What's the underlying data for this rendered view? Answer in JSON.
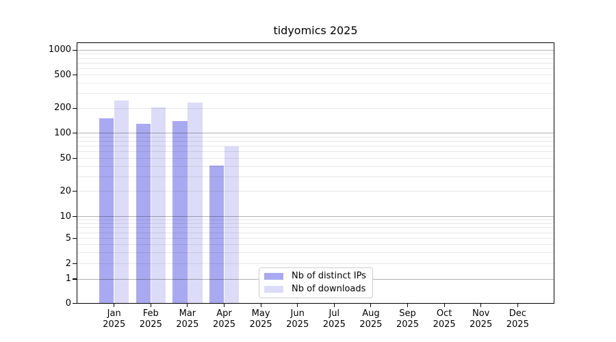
{
  "title": "tidyomics 2025",
  "colors": {
    "ips_bar": "#a9a9f1",
    "downloads_bar": "#dcdcf8",
    "grid_major": "rgba(0,0,0,0.30)",
    "grid_minor": "rgba(0,0,0,0.09)",
    "axis": "#000000",
    "legend_border": "#cccccc",
    "background": "#ffffff"
  },
  "y_axis": {
    "tick_labels": [
      "0",
      "1",
      "2",
      "5",
      "10",
      "20",
      "50",
      "100",
      "200",
      "500",
      "1000"
    ],
    "tick_values": [
      0,
      1,
      2,
      5,
      10,
      20,
      50,
      100,
      200,
      500,
      1000
    ]
  },
  "x_axis": {
    "months": [
      "Jan",
      "Feb",
      "Mar",
      "Apr",
      "May",
      "Jun",
      "Jul",
      "Aug",
      "Sep",
      "Oct",
      "Nov",
      "Dec"
    ],
    "year": "2025"
  },
  "legend": {
    "items": [
      {
        "label": "Nb of distinct IPs",
        "color_key": "ips_bar"
      },
      {
        "label": "Nb of downloads",
        "color_key": "downloads_bar"
      }
    ]
  },
  "chart_data": {
    "type": "bar",
    "title": "tidyomics 2025",
    "categories": [
      "Jan 2025",
      "Feb 2025",
      "Mar 2025",
      "Apr 2025",
      "May 2025",
      "Jun 2025",
      "Jul 2025",
      "Aug 2025",
      "Sep 2025",
      "Oct 2025",
      "Nov 2025",
      "Dec 2025"
    ],
    "series": [
      {
        "name": "Nb of distinct IPs",
        "color": "#a9a9f1",
        "values": [
          152,
          130,
          140,
          41,
          null,
          null,
          null,
          null,
          null,
          null,
          null,
          null
        ]
      },
      {
        "name": "Nb of downloads",
        "color": "#dcdcf8",
        "values": [
          250,
          205,
          236,
          70,
          null,
          null,
          null,
          null,
          null,
          null,
          null,
          null
        ]
      }
    ],
    "ylabel": "",
    "xlabel": "",
    "yscale": "log-like with linear segment below 1; labeled ticks 0,1,2,5,10,20,50,100,200,500,1000",
    "ylim": [
      0,
      1200
    ],
    "grid": "horizontal; dark gridlines at 1,10,100,1000; faint minor gridlines at 2-9 mantissas; gridlines drawn over bars",
    "legend_position": "lower center inside plot"
  }
}
